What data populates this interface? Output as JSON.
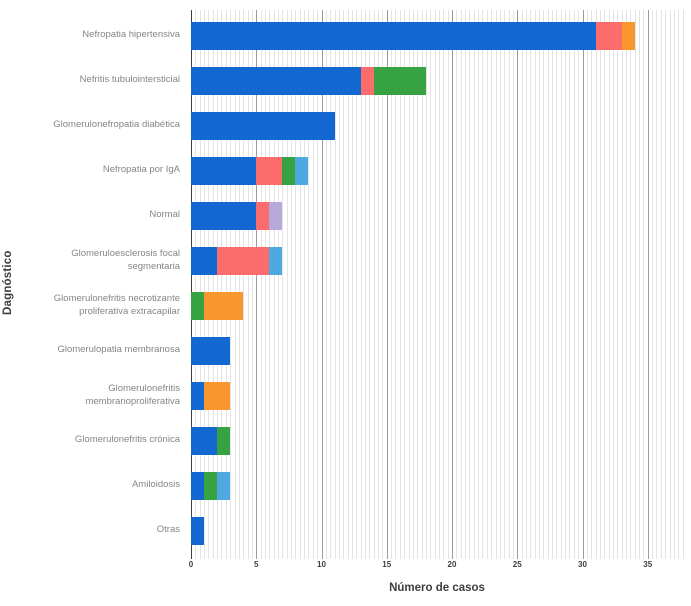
{
  "axis": {
    "x_title": "Número de casos",
    "y_title": "Dagnóstico"
  },
  "chart_data": {
    "type": "bar",
    "orientation": "horizontal",
    "stacked": true,
    "title": "",
    "xlabel": "Número de casos",
    "ylabel": "Dagnóstico",
    "xlim": [
      0,
      37.7
    ],
    "x_ticks": [
      0,
      5,
      10,
      15,
      20,
      25,
      30,
      35
    ],
    "grid": {
      "minor_step_units": 0.3333,
      "major_step_units": 5,
      "minor_color": "#e4e4e4",
      "major_color": "#9b9b9b",
      "zero_line_color": "#3f3f3f"
    },
    "legend": "none",
    "categories": [
      "Nefropatia hipertensiva",
      "Nefritis tubulointersticial",
      "Glomerulonefropatia diabética",
      "Nefropatia por IgA",
      "Normal",
      "Glomeruloesclerosis focal segmentaria",
      "Glomerulonefritis necrotizante proliferativa extracapilar",
      "Glomerulopatia membranosa",
      "Glomerulonefritis membranoproliferativa",
      "Glomerulonefritis crónica",
      "Amiloidosis",
      "Otras"
    ],
    "series": [
      {
        "name": "blue",
        "color": "#1267d1",
        "values": [
          31,
          13,
          11,
          5,
          5,
          2,
          0,
          3,
          1,
          2,
          1,
          1
        ]
      },
      {
        "name": "salmon",
        "color": "#fc6c6c",
        "values": [
          2,
          1,
          0,
          2,
          1,
          4,
          0,
          0,
          0,
          0,
          0,
          0
        ]
      },
      {
        "name": "green",
        "color": "#36a242",
        "values": [
          0,
          4,
          0,
          1,
          0,
          0,
          1,
          0,
          0,
          1,
          1,
          0
        ]
      },
      {
        "name": "orange",
        "color": "#f9962e",
        "values": [
          1,
          0,
          0,
          0,
          0,
          0,
          3,
          0,
          2,
          0,
          0,
          0
        ]
      },
      {
        "name": "light-blue",
        "color": "#4fa9e1",
        "values": [
          0,
          0,
          0,
          1,
          0,
          1,
          0,
          0,
          0,
          0,
          1,
          0
        ]
      },
      {
        "name": "lavender",
        "color": "#b7a8da",
        "values": [
          0,
          0,
          0,
          0,
          1,
          0,
          0,
          0,
          0,
          0,
          0,
          0
        ]
      }
    ],
    "totals": [
      34,
      18,
      11,
      9,
      7,
      7,
      4,
      3,
      3,
      3,
      3,
      1
    ]
  }
}
